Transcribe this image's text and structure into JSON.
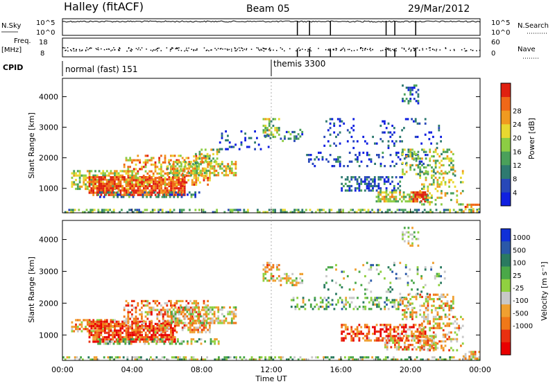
{
  "header": {
    "title": "Halley (fitACF)",
    "beam": "Beam 05",
    "date": "29/Mar/2012"
  },
  "strip_panels": {
    "nsky_label": "N.Sky",
    "nsearch_label": "N.Search",
    "nsky_ticks": [
      "10^5",
      "10^0"
    ],
    "nsearch_ticks": [
      "10^5",
      "10^0"
    ],
    "freq_label": "Freq.",
    "freq_unit": "[MHz]",
    "freq_ticks": [
      "18",
      "8"
    ],
    "nave_label": "Nave",
    "nave_ticks": [
      "60",
      "0"
    ],
    "cpid_label": "CPID",
    "cpid_segments": [
      {
        "label": "normal (fast) 151",
        "start_hour": 0
      },
      {
        "label": "themis 3300",
        "start_hour": 12
      }
    ],
    "nsky_spike_hours": [
      13.5,
      14.2,
      15.4,
      18.6,
      19.1,
      20.3
    ]
  },
  "chart_data": [
    {
      "type": "heatmap",
      "name": "power-panel",
      "ylabel": "Slant Range [km]",
      "xlabel": "",
      "x_range_hours": [
        0,
        24
      ],
      "ylim": [
        200,
        4600
      ],
      "yticks": [
        1000,
        2000,
        3000,
        4000
      ],
      "colorbar": {
        "label": "Power [dB]",
        "ticks": [
          4,
          8,
          12,
          16,
          20,
          24,
          28
        ],
        "range": [
          0,
          32
        ],
        "colors": [
          "#1020e0",
          "#2848b8",
          "#2e7a70",
          "#4aa05a",
          "#8ccd44",
          "#e8d830",
          "#f09a20",
          "#f06818",
          "#e02010"
        ]
      },
      "regions": [
        {
          "x": [
            0.5,
            4
          ],
          "y": [
            1000,
            1600
          ],
          "level": 0.55,
          "density": 0.6
        },
        {
          "x": [
            1.5,
            7
          ],
          "y": [
            800,
            1400
          ],
          "level": 0.9,
          "density": 0.8
        },
        {
          "x": [
            3.5,
            8.5
          ],
          "y": [
            1100,
            2100
          ],
          "level": 0.7,
          "density": 0.45
        },
        {
          "x": [
            6,
            10
          ],
          "y": [
            1400,
            1900
          ],
          "level": 0.6,
          "density": 0.6
        },
        {
          "x": [
            7.5,
            9
          ],
          "y": [
            1800,
            2300
          ],
          "level": 0.5,
          "density": 0.35
        },
        {
          "x": [
            2,
            8
          ],
          "y": [
            700,
            900
          ],
          "level": 0.25,
          "density": 0.35
        },
        {
          "x": [
            0,
            24
          ],
          "y": [
            220,
            330
          ],
          "level": 0.4,
          "density": 0.45
        },
        {
          "x": [
            11.5,
            12.5
          ],
          "y": [
            2700,
            3300
          ],
          "level": 0.5,
          "density": 0.5
        },
        {
          "x": [
            12.5,
            13.8
          ],
          "y": [
            2550,
            2950
          ],
          "level": 0.3,
          "density": 0.4
        },
        {
          "x": [
            9,
            12
          ],
          "y": [
            2300,
            2900
          ],
          "level": 0.1,
          "density": 0.12
        },
        {
          "x": [
            14,
            21
          ],
          "y": [
            1700,
            2200
          ],
          "level": 0.15,
          "density": 0.18
        },
        {
          "x": [
            15,
            22
          ],
          "y": [
            2300,
            3300
          ],
          "level": 0.12,
          "density": 0.1
        },
        {
          "x": [
            16,
            19.5
          ],
          "y": [
            900,
            1400
          ],
          "level": 0.2,
          "density": 0.4
        },
        {
          "x": [
            18,
            21
          ],
          "y": [
            600,
            900
          ],
          "level": 0.6,
          "density": 0.6
        },
        {
          "x": [
            20,
            21
          ],
          "y": [
            550,
            900
          ],
          "level": 0.95,
          "density": 0.75
        },
        {
          "x": [
            20.5,
            23
          ],
          "y": [
            500,
            1600
          ],
          "level": 0.55,
          "density": 0.3
        },
        {
          "x": [
            23,
            24
          ],
          "y": [
            250,
            500
          ],
          "level": 0.7,
          "density": 0.5
        },
        {
          "x": [
            19.5,
            20.5
          ],
          "y": [
            3800,
            4400
          ],
          "level": 0.2,
          "density": 0.4
        },
        {
          "x": [
            19.5,
            22.5
          ],
          "y": [
            1500,
            2300
          ],
          "level": 0.5,
          "density": 0.4
        }
      ]
    },
    {
      "type": "heatmap",
      "name": "velocity-panel",
      "ylabel": "Slant Range [km]",
      "xlabel": "Time UT",
      "x_range_hours": [
        0,
        24
      ],
      "xticks": [
        "00:00",
        "04:00",
        "08:00",
        "12:00",
        "16:00",
        "20:00",
        "00:00"
      ],
      "ylim": [
        200,
        4600
      ],
      "yticks": [
        1000,
        2000,
        3000,
        4000
      ],
      "colorbar": {
        "label": "Velocity [m s⁻¹]",
        "ticks": [
          "1000",
          "500",
          "100",
          "25",
          "-25",
          "-100",
          "-500",
          "-1000"
        ],
        "colors": [
          "#1030d8",
          "#2a58a8",
          "#2a7a60",
          "#4aa848",
          "#90d040",
          "#c8c8c8",
          "#f0a030",
          "#f07818",
          "#e83010",
          "#e80000"
        ]
      },
      "regions": [
        {
          "x": [
            0.5,
            3
          ],
          "y": [
            1100,
            1500
          ],
          "level": 0.65,
          "density": 0.6
        },
        {
          "x": [
            1.5,
            6.5
          ],
          "y": [
            800,
            1450
          ],
          "level": 0.85,
          "density": 0.8
        },
        {
          "x": [
            3.5,
            8.5
          ],
          "y": [
            1100,
            2100
          ],
          "level": 0.7,
          "density": 0.45
        },
        {
          "x": [
            6,
            10
          ],
          "y": [
            1400,
            1900
          ],
          "level": 0.55,
          "density": 0.6
        },
        {
          "x": [
            2,
            9
          ],
          "y": [
            700,
            900
          ],
          "level": 0.45,
          "density": 0.35
        },
        {
          "x": [
            0,
            24
          ],
          "y": [
            220,
            330
          ],
          "level": 0.45,
          "density": 0.45
        },
        {
          "x": [
            11.5,
            12.5
          ],
          "y": [
            2700,
            3300
          ],
          "level": 0.6,
          "density": 0.5
        },
        {
          "x": [
            12.5,
            13.8
          ],
          "y": [
            2550,
            2950
          ],
          "level": 0.6,
          "density": 0.4
        },
        {
          "x": [
            13,
            20
          ],
          "y": [
            1800,
            2200
          ],
          "level": 0.4,
          "density": 0.35
        },
        {
          "x": [
            15,
            22
          ],
          "y": [
            2300,
            3300
          ],
          "level": 0.4,
          "density": 0.1
        },
        {
          "x": [
            16,
            21
          ],
          "y": [
            850,
            1350
          ],
          "level": 0.8,
          "density": 0.55
        },
        {
          "x": [
            18.5,
            21.5
          ],
          "y": [
            550,
            1000
          ],
          "level": 0.65,
          "density": 0.6
        },
        {
          "x": [
            20.5,
            23
          ],
          "y": [
            500,
            1600
          ],
          "level": 0.65,
          "density": 0.35
        },
        {
          "x": [
            23,
            24
          ],
          "y": [
            250,
            500
          ],
          "level": 0.65,
          "density": 0.5
        },
        {
          "x": [
            19.5,
            20.5
          ],
          "y": [
            3800,
            4400
          ],
          "level": 0.55,
          "density": 0.4
        },
        {
          "x": [
            19.5,
            22.5
          ],
          "y": [
            1500,
            2300
          ],
          "level": 0.6,
          "density": 0.4
        }
      ]
    }
  ]
}
